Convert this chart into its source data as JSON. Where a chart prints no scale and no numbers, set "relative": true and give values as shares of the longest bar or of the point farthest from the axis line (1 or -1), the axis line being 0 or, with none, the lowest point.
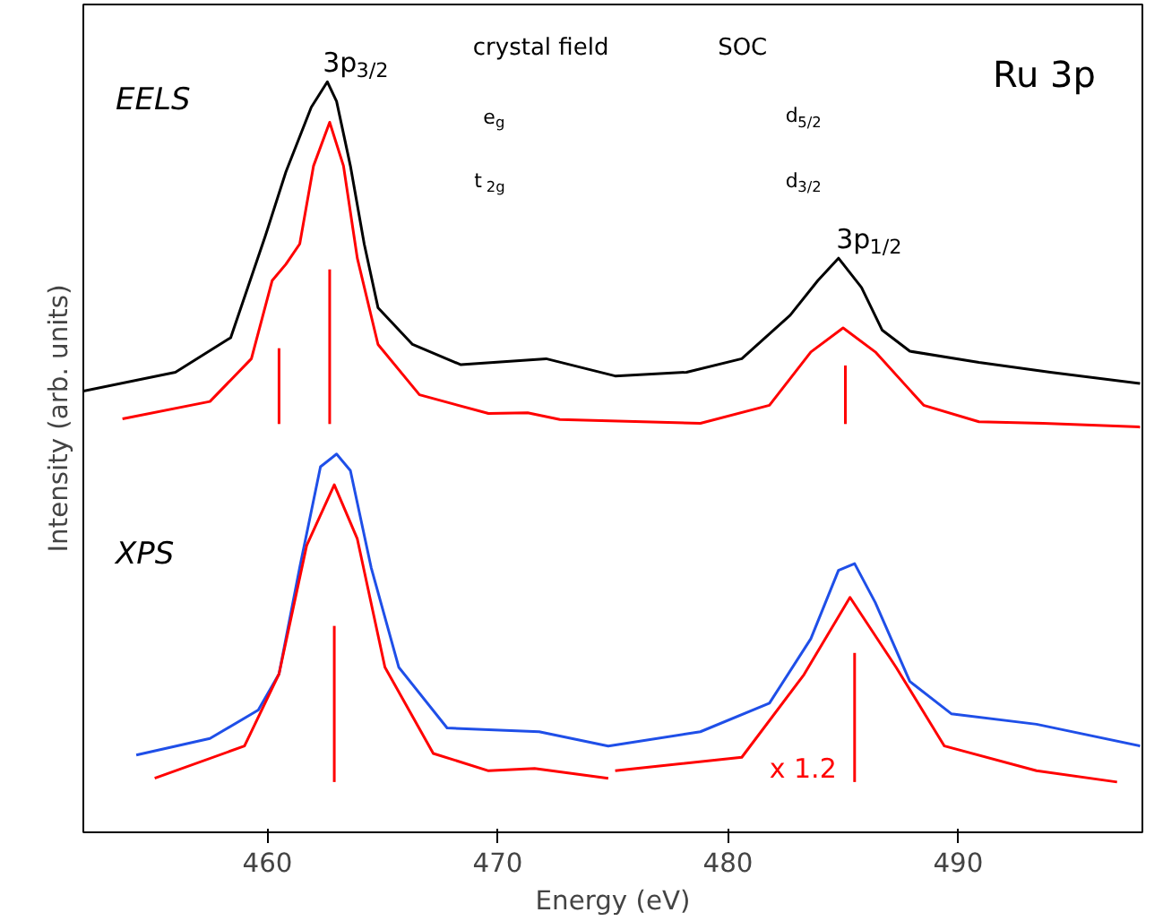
{
  "chart_data": {
    "type": "line",
    "relative": true,
    "xlabel": "Energy (eV)",
    "ylabel": "Intensity (arb. units)",
    "xlim": [
      452,
      498
    ],
    "xticks": [
      460,
      470,
      480,
      490
    ],
    "grid": false,
    "marker": "none",
    "line_style": "solid",
    "series": [
      {
        "color": "#000000",
        "x": [
          452.0,
          456.0,
          458.4,
          459.9,
          460.8,
          461.9,
          462.6,
          463.0,
          463.6,
          464.2,
          464.8,
          466.3,
          468.4,
          472.1,
          475.1,
          478.2,
          480.6,
          482.7,
          483.9,
          484.8,
          485.8,
          486.7,
          487.9,
          490.9,
          494.0,
          497.9
        ],
        "values": [
          0.588,
          0.613,
          0.659,
          0.794,
          0.88,
          0.966,
          1.0,
          0.974,
          0.888,
          0.784,
          0.699,
          0.65,
          0.623,
          0.631,
          0.608,
          0.613,
          0.631,
          0.689,
          0.735,
          0.765,
          0.726,
          0.669,
          0.641,
          0.626,
          0.613,
          0.598
        ]
      },
      {
        "color": "#ff0000",
        "x": [
          453.7,
          457.5,
          459.3,
          460.2,
          460.8,
          461.4,
          462.0,
          462.7,
          463.3,
          463.9,
          464.8,
          466.6,
          469.6,
          471.3,
          472.7,
          478.8,
          481.8,
          483.6,
          485.0,
          486.4,
          488.5,
          490.9,
          493.7,
          497.9
        ],
        "values": [
          0.551,
          0.574,
          0.631,
          0.735,
          0.757,
          0.784,
          0.888,
          0.946,
          0.888,
          0.765,
          0.65,
          0.583,
          0.558,
          0.559,
          0.55,
          0.545,
          0.569,
          0.64,
          0.672,
          0.64,
          0.569,
          0.547,
          0.545,
          0.54
        ]
      },
      {
        "color": "#ff0000",
        "x": [
          460.5,
          460.5
        ],
        "values": [
          0.544,
          0.645
        ]
      },
      {
        "color": "#ff0000",
        "x": [
          462.7,
          462.7
        ],
        "values": [
          0.544,
          0.75
        ]
      },
      {
        "color": "#ff0000",
        "x": [
          485.1,
          485.1
        ],
        "values": [
          0.544,
          0.622
        ]
      },
      {
        "color": "#1f4fe8",
        "x": [
          454.3,
          457.5,
          459.6,
          460.5,
          461.4,
          462.3,
          463.0,
          463.6,
          464.5,
          465.7,
          467.8,
          471.8,
          474.8,
          478.8,
          481.8,
          483.6,
          484.8,
          485.5,
          486.4,
          487.9,
          489.7,
          493.4,
          497.9
        ],
        "values": [
          0.103,
          0.125,
          0.163,
          0.211,
          0.353,
          0.487,
          0.504,
          0.482,
          0.353,
          0.22,
          0.139,
          0.134,
          0.115,
          0.134,
          0.172,
          0.258,
          0.349,
          0.358,
          0.306,
          0.201,
          0.158,
          0.144,
          0.115
        ]
      },
      {
        "color": "#ff0000",
        "x": [
          455.1,
          459.0,
          460.5,
          461.7,
          462.9,
          463.9,
          465.1,
          467.2,
          469.6,
          471.6,
          474.8,
          474.9,
          475.1,
          480.6,
          483.3,
          485.3,
          487.3,
          489.4,
          493.4,
          496.9
        ],
        "values": [
          0.072,
          0.115,
          0.211,
          0.382,
          0.463,
          0.391,
          0.22,
          0.105,
          0.082,
          0.085,
          0.072,
          null,
          0.082,
          0.1,
          0.21,
          0.313,
          0.22,
          0.115,
          0.082,
          0.067
        ]
      },
      {
        "color": "#ff0000",
        "x": [
          462.9,
          462.9
        ],
        "values": [
          0.067,
          0.275
        ]
      },
      {
        "color": "#ff0000",
        "x": [
          485.5,
          485.5
        ],
        "values": [
          0.067,
          0.239
        ]
      }
    ],
    "annotations": [
      "EELS",
      "XPS",
      "Ru 3p",
      "crystal field",
      "SOC",
      "e$_{g}$",
      "t$_{2g}$",
      "d$_{5/2}$",
      "d$_{3/2}$",
      "x 1.2",
      {
        "text": "3p$_{3/2}$",
        "x": 462.7,
        "y": 1.0
      },
      {
        "text": "3p$_{1/2}$",
        "x": 485.0,
        "y": 0.765
      }
    ]
  }
}
